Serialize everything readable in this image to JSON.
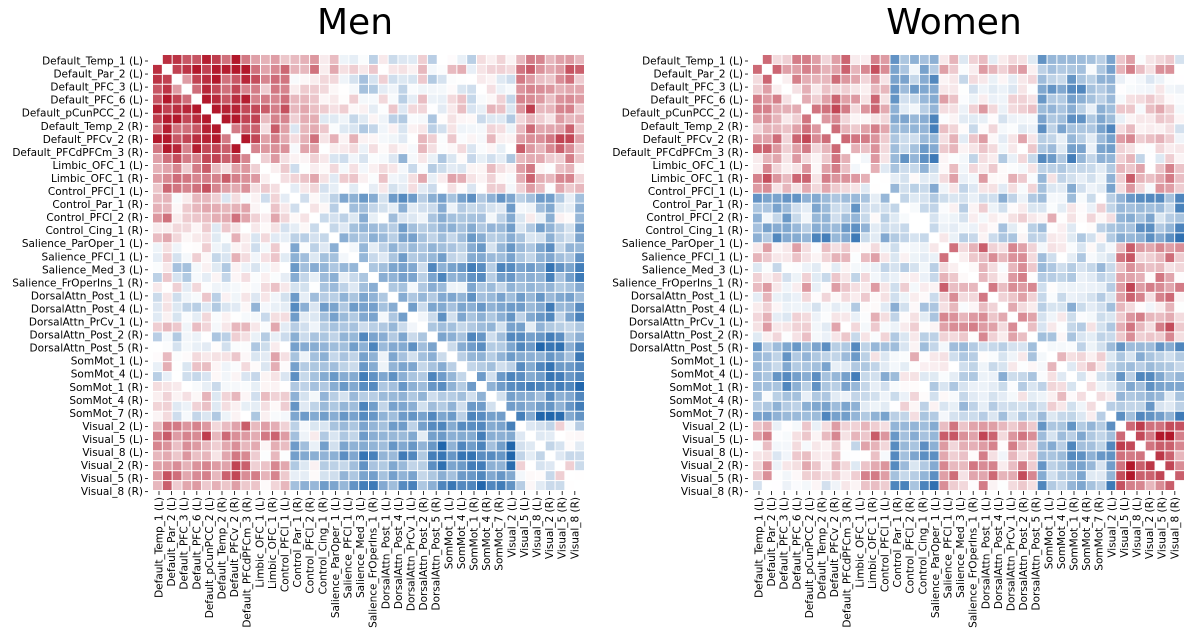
{
  "chart_data": [
    {
      "type": "heatmap",
      "title": "Men",
      "pattern": "men",
      "n_cells": 44,
      "colormap": "diverging red (positive) / white / blue (negative)",
      "legend": "none",
      "labels": [
        "Default_Temp_1 (L)",
        "Default_Par_2 (L)",
        "Default_PFC_3 (L)",
        "Default_PFC_6 (L)",
        "Default_pCunPCC_2 (L)",
        "Default_Temp_2 (R)",
        "Default_PFCv_2 (R)",
        "Default_PFCdPFCm_3 (R)",
        "Limbic_OFC_1 (L)",
        "Limbic_OFC_1 (R)",
        "Control_PFCl_1 (L)",
        "Control_Par_1 (R)",
        "Control_PFCl_2 (R)",
        "Control_Cing_1 (R)",
        "Salience_ParOper_1 (L)",
        "Salience_PFCl_1 (L)",
        "Salience_Med_3 (L)",
        "Salience_FrOperIns_1 (R)",
        "DorsalAttn_Post_1 (L)",
        "DorsalAttn_Post_4 (L)",
        "DorsalAttn_PrCv_1 (L)",
        "DorsalAttn_Post_2 (R)",
        "DorsalAttn_Post_5 (R)",
        "SomMot_1 (L)",
        "SomMot_4 (L)",
        "SomMot_1 (R)",
        "SomMot_4 (R)",
        "SomMot_7 (R)",
        "Visual_2 (L)",
        "Visual_5 (L)",
        "Visual_8 (L)",
        "Visual_2 (R)",
        "Visual_5 (R)",
        "Visual_8 (R)"
      ],
      "label_rows": [
        0,
        1,
        2,
        3,
        4,
        5,
        6,
        7,
        8,
        9,
        10,
        11,
        12,
        13,
        14,
        15,
        16,
        17,
        18,
        19,
        20,
        21,
        22,
        23,
        24,
        25,
        26,
        27,
        28,
        29,
        30,
        31,
        32,
        33
      ]
    },
    {
      "type": "heatmap",
      "title": "Women",
      "pattern": "women",
      "n_cells": 44,
      "colormap": "diverging red (positive) / white / blue (negative)",
      "legend": "none",
      "labels": [
        "Default_Temp_1 (L)",
        "Default_Par_2 (L)",
        "Default_PFC_3 (L)",
        "Default_PFC_6 (L)",
        "Default_pCunPCC_2 (L)",
        "Default_Temp_2 (R)",
        "Default_PFCv_2 (R)",
        "Default_PFCdPFCm_3 (R)",
        "Limbic_OFC_1 (L)",
        "Limbic_OFC_1 (R)",
        "Control_PFCl_1 (L)",
        "Control_Par_1 (R)",
        "Control_PFCl_2 (R)",
        "Control_Cing_1 (R)",
        "Salience_ParOper_1 (L)",
        "Salience_PFCl_1 (L)",
        "Salience_Med_3 (L)",
        "Salience_FrOperIns_1 (R)",
        "DorsalAttn_Post_1 (L)",
        "DorsalAttn_Post_4 (L)",
        "DorsalAttn_PrCv_1 (L)",
        "DorsalAttn_Post_2 (R)",
        "DorsalAttn_Post_5 (R)",
        "SomMot_1 (L)",
        "SomMot_4 (L)",
        "SomMot_1 (R)",
        "SomMot_4 (R)",
        "SomMot_7 (R)",
        "Visual_2 (L)",
        "Visual_5 (L)",
        "Visual_8 (L)",
        "Visual_2 (R)",
        "Visual_5 (R)",
        "Visual_8 (R)"
      ],
      "label_rows": [
        0,
        1,
        2,
        3,
        4,
        5,
        6,
        7,
        8,
        9,
        10,
        11,
        12,
        13,
        14,
        15,
        16,
        17,
        18,
        19,
        20,
        21,
        22,
        23,
        24,
        25,
        26,
        27,
        28,
        29,
        30,
        31,
        32,
        33
      ]
    }
  ],
  "colors": {
    "positive": "#b2182b",
    "neutral": "#ffffff",
    "negative": "#2166ac",
    "grid_lines": "#ffffff"
  }
}
